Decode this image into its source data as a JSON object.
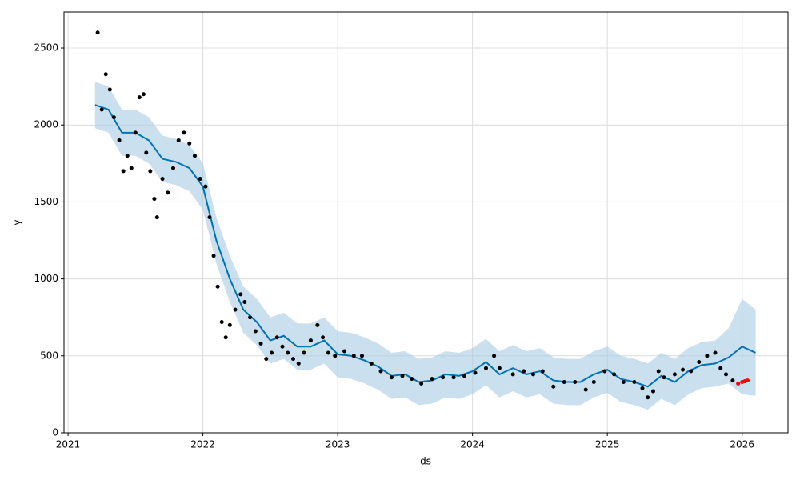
{
  "chart_data": {
    "type": "line",
    "x_label": "ds",
    "y_label": "y",
    "xlim": [
      2020.97,
      2026.34
    ],
    "xticks": [
      2021,
      2022,
      2023,
      2024,
      2025,
      2026
    ],
    "ylim": [
      0,
      2734
    ],
    "yticks": [
      0,
      500,
      1000,
      1500,
      2000,
      2500
    ],
    "grid": true,
    "band_color": "#a6cbe3",
    "series": [
      {
        "type": "band_line",
        "color": "#0072B2",
        "x": [
          2021.2,
          2021.3,
          2021.4,
          2021.5,
          2021.6,
          2021.7,
          2021.8,
          2021.9,
          2022.0,
          2022.1,
          2022.2,
          2022.3,
          2022.4,
          2022.5,
          2022.6,
          2022.7,
          2022.8,
          2022.9,
          2023.0,
          2023.1,
          2023.2,
          2023.3,
          2023.4,
          2023.5,
          2023.6,
          2023.7,
          2023.8,
          2023.9,
          2024.0,
          2024.1,
          2024.2,
          2024.3,
          2024.4,
          2024.5,
          2024.6,
          2024.7,
          2024.8,
          2024.9,
          2025.0,
          2025.1,
          2025.2,
          2025.3,
          2025.4,
          2025.5,
          2025.6,
          2025.7,
          2025.8,
          2025.9,
          2026.0,
          2026.1
        ],
        "values": [
          2130,
          2100,
          1950,
          1950,
          1900,
          1780,
          1760,
          1720,
          1600,
          1250,
          1000,
          800,
          720,
          600,
          630,
          560,
          560,
          600,
          510,
          500,
          470,
          430,
          370,
          380,
          330,
          340,
          380,
          370,
          400,
          460,
          380,
          420,
          380,
          400,
          340,
          330,
          330,
          380,
          410,
          350,
          330,
          300,
          370,
          330,
          400,
          440,
          450,
          490,
          560,
          520
        ],
        "lower": [
          1980,
          1950,
          1800,
          1800,
          1750,
          1630,
          1610,
          1570,
          1450,
          1100,
          850,
          650,
          570,
          450,
          480,
          410,
          410,
          450,
          360,
          350,
          320,
          280,
          220,
          230,
          180,
          190,
          230,
          220,
          250,
          310,
          230,
          270,
          230,
          250,
          190,
          180,
          180,
          230,
          260,
          200,
          180,
          150,
          220,
          180,
          250,
          290,
          300,
          320,
          250,
          240
        ],
        "upper": [
          2280,
          2250,
          2100,
          2100,
          2050,
          1930,
          1910,
          1870,
          1750,
          1400,
          1150,
          950,
          870,
          750,
          780,
          710,
          710,
          750,
          660,
          650,
          620,
          580,
          520,
          530,
          480,
          490,
          530,
          520,
          550,
          610,
          530,
          570,
          530,
          550,
          490,
          480,
          480,
          530,
          560,
          500,
          480,
          450,
          520,
          480,
          550,
          590,
          600,
          680,
          870,
          800
        ]
      },
      {
        "type": "scatter",
        "color": "#000000",
        "x": [
          2021.22,
          2021.25,
          2021.28,
          2021.31,
          2021.34,
          2021.38,
          2021.41,
          2021.44,
          2021.47,
          2021.5,
          2021.53,
          2021.56,
          2021.58,
          2021.61,
          2021.64,
          2021.66,
          2021.7,
          2021.74,
          2021.78,
          2021.82,
          2021.86,
          2021.9,
          2021.94,
          2021.98,
          2022.02,
          2022.05,
          2022.08,
          2022.11,
          2022.14,
          2022.17,
          2022.2,
          2022.24,
          2022.28,
          2022.31,
          2022.35,
          2022.39,
          2022.43,
          2022.47,
          2022.51,
          2022.55,
          2022.59,
          2022.63,
          2022.67,
          2022.71,
          2022.75,
          2022.8,
          2022.85,
          2022.89,
          2022.93,
          2022.98,
          2023.05,
          2023.12,
          2023.18,
          2023.25,
          2023.32,
          2023.4,
          2023.48,
          2023.55,
          2023.62,
          2023.7,
          2023.78,
          2023.86,
          2023.94,
          2024.02,
          2024.1,
          2024.16,
          2024.2,
          2024.3,
          2024.38,
          2024.45,
          2024.52,
          2024.6,
          2024.68,
          2024.76,
          2024.84,
          2024.9,
          2024.98,
          2025.05,
          2025.12,
          2025.2,
          2025.26,
          2025.3,
          2025.34,
          2025.38,
          2025.42,
          2025.5,
          2025.56,
          2025.62,
          2025.68,
          2025.74,
          2025.8,
          2025.84,
          2025.88,
          2025.93
        ],
        "values": [
          2600,
          2100,
          2330,
          2230,
          2050,
          1900,
          1700,
          1800,
          1720,
          1950,
          2180,
          2200,
          1820,
          1700,
          1520,
          1400,
          1650,
          1560,
          1720,
          1900,
          1950,
          1880,
          1800,
          1650,
          1600,
          1400,
          1150,
          950,
          720,
          620,
          700,
          800,
          900,
          850,
          750,
          660,
          580,
          480,
          520,
          620,
          560,
          520,
          480,
          450,
          520,
          600,
          700,
          620,
          520,
          500,
          530,
          500,
          500,
          450,
          400,
          360,
          370,
          350,
          320,
          350,
          360,
          360,
          370,
          390,
          420,
          500,
          420,
          380,
          400,
          380,
          400,
          300,
          330,
          330,
          280,
          330,
          400,
          380,
          330,
          330,
          290,
          230,
          270,
          400,
          360,
          380,
          410,
          400,
          460,
          500,
          520,
          420,
          380,
          340
        ]
      },
      {
        "type": "scatter",
        "color": "#ff0000",
        "x": [
          2025.97,
          2026.0,
          2026.02,
          2026.04
        ],
        "values": [
          320,
          330,
          335,
          340
        ]
      }
    ]
  }
}
